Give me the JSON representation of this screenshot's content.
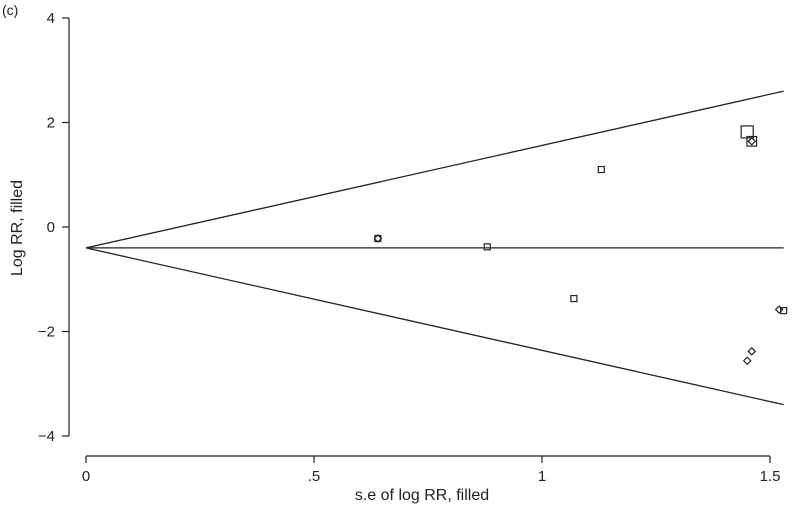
{
  "panel_tag": "(c)",
  "chart_data": {
    "type": "scatter",
    "title": "",
    "xlabel": "s.e of log RR, filled",
    "ylabel": "Log RR, filled",
    "xlim": [
      -0.02,
      1.54
    ],
    "ylim": [
      -4.3,
      4.2
    ],
    "xticks": [
      0,
      0.5,
      1,
      1.5
    ],
    "xtick_labels": [
      "0",
      ".5",
      "1",
      "1.5"
    ],
    "yticks": [
      -4,
      -2,
      0,
      2,
      4
    ],
    "ytick_labels": [
      "−4",
      "−2",
      "0",
      "2",
      "4"
    ],
    "grid": false,
    "pooled_estimate": -0.4,
    "funnel_upper": [
      [
        0,
        -0.4
      ],
      [
        1.53,
        2.6
      ]
    ],
    "funnel_lower": [
      [
        0,
        -0.4
      ],
      [
        1.53,
        -3.4
      ]
    ],
    "observed_points": [
      {
        "x": 0.64,
        "y": -0.22,
        "size": 1
      },
      {
        "x": 0.88,
        "y": -0.38,
        "size": 1
      },
      {
        "x": 1.07,
        "y": -1.37,
        "size": 1
      },
      {
        "x": 1.13,
        "y": 1.1,
        "size": 1
      },
      {
        "x": 1.45,
        "y": 1.82,
        "size": 2
      },
      {
        "x": 1.46,
        "y": 1.64,
        "size": 1.6
      },
      {
        "x": 1.53,
        "y": -1.6,
        "size": 1
      }
    ],
    "filled_points": [
      {
        "x": 0.64,
        "y": -0.22
      },
      {
        "x": 1.46,
        "y": 1.64
      },
      {
        "x": 1.45,
        "y": -2.56
      },
      {
        "x": 1.46,
        "y": -2.38
      },
      {
        "x": 1.52,
        "y": -1.58
      }
    ]
  }
}
